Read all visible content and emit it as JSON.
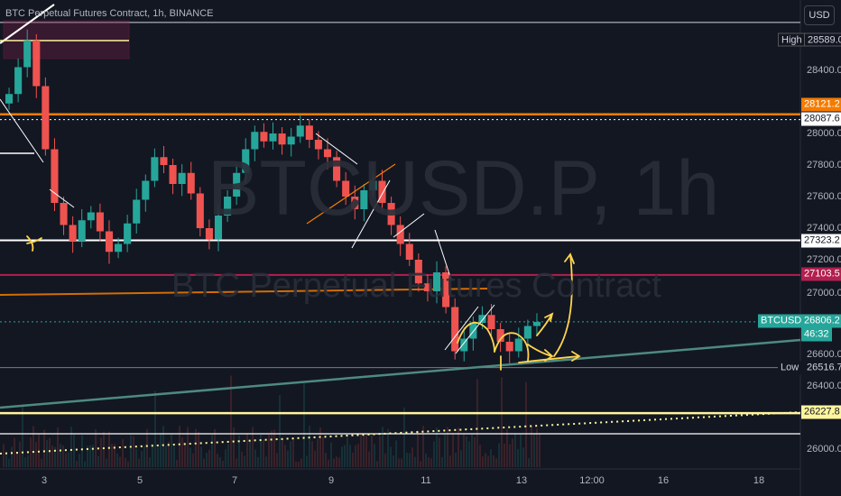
{
  "header": {
    "title": "BTC Perpetual Futures Contract, 1h, BINANCE",
    "currency_button": "USD"
  },
  "watermark": {
    "symbol": "BTCUSD.P, 1h",
    "description": "BTC Perpetual Futures Contract"
  },
  "colors": {
    "background": "#131722",
    "up": "#26a69a",
    "down": "#ef5350",
    "orange_line": "#f57c00",
    "crimson_line": "#b2204f",
    "yellow_line": "#fff59d",
    "trend_line": "#4e8a80",
    "drawing": "#ffd54f"
  },
  "x_axis": {
    "ticks": [
      "3",
      "5",
      "7",
      "9",
      "11",
      "13",
      "12:00",
      "16",
      "18"
    ]
  },
  "y_axis": {
    "ticks": [
      "28400.0",
      "28000.0",
      "27800.0",
      "27600.0",
      "27400.0",
      "27200.0",
      "27000.0",
      "26600.0",
      "26400.0",
      "26000.0"
    ]
  },
  "price_tags": {
    "high_label": "High",
    "high_value": "28589.0",
    "orange_value": "28121.2",
    "white_value": "28087.6",
    "support_value": "27323.2",
    "crimson_value": "27103.5",
    "symbol_label": "BTCUSD.P",
    "last_value": "26806.2",
    "countdown": "46:32",
    "low_label": "Low",
    "low_value": "26516.7",
    "yellow_value": "26227.8"
  },
  "chart_data": {
    "type": "candlestick",
    "title": "BTC Perpetual Futures Contract, 1h, BINANCE",
    "xlabel": "",
    "ylabel": "",
    "x_ticks": [
      "3",
      "5",
      "7",
      "9",
      "11",
      "13",
      "12:00",
      "16",
      "18"
    ],
    "y_ticks": [
      28400,
      28000,
      27800,
      27600,
      27400,
      27200,
      27000,
      26600,
      26400,
      26000
    ],
    "ylim": [
      25900,
      28700
    ],
    "series": [
      {
        "name": "BTCUSD.P",
        "values": [
          28250,
          28420,
          28589,
          28300,
          27900,
          27560,
          27420,
          27320,
          27450,
          27500,
          27380,
          27250,
          27300,
          27430,
          27580,
          27700,
          27850,
          27800,
          27680,
          27750,
          27620,
          27400,
          27330,
          27480,
          27600,
          27750,
          27900,
          28010,
          27950,
          28000,
          27930,
          27980,
          28050,
          27960,
          27900,
          27850,
          27700,
          27600,
          27520,
          27640,
          27700,
          27560,
          27420,
          27300,
          27200,
          27050,
          27000,
          27120,
          26900,
          26620,
          26700,
          26800,
          26850,
          26760,
          26680,
          26620,
          26700,
          26780,
          26806
        ]
      }
    ],
    "horizontal_levels": [
      {
        "value": 28589.0,
        "label": "High"
      },
      {
        "value": 28121.2
      },
      {
        "value": 28087.6
      },
      {
        "value": 27323.2
      },
      {
        "value": 27103.5
      },
      {
        "value": 26806.2,
        "label": "BTCUSD.P"
      },
      {
        "value": 26516.7,
        "label": "Low"
      },
      {
        "value": 26227.8
      }
    ],
    "grid": false
  }
}
